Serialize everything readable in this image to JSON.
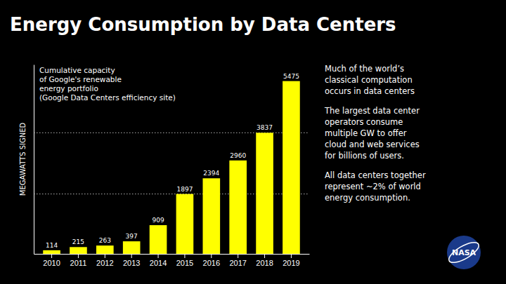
{
  "chart_data": {
    "type": "bar",
    "title": "Energy Consumption by Data Centers",
    "subtitle": [
      "Cumulative capacity",
      "of Google's renewable",
      "energy portfolio",
      "(Google Data Centers efficiency site)"
    ],
    "ylabel": "MEGAWATTS SIGNED",
    "categories": [
      "2010",
      "2011",
      "2012",
      "2013",
      "2014",
      "2015",
      "2016",
      "2017",
      "2018",
      "2019"
    ],
    "values": [
      114,
      215,
      263,
      397,
      909,
      1897,
      2394,
      2960,
      3837,
      5475
    ],
    "color": "#FFFF00",
    "ylim": [
      0,
      6000
    ],
    "tick_labels": "x",
    "data_labels": true,
    "reference_lines": [
      1897,
      3837
    ],
    "annotations": [
      [
        "Much of the world’s",
        "classical computation",
        "occurs in data centers"
      ],
      [
        "The largest data center",
        "operators consume",
        "multiple GW to offer",
        "cloud and web services",
        "for billions of users."
      ],
      [
        "All data centers together",
        "represent ~2% of world",
        "energy consumption."
      ]
    ],
    "logo": "NASA"
  }
}
